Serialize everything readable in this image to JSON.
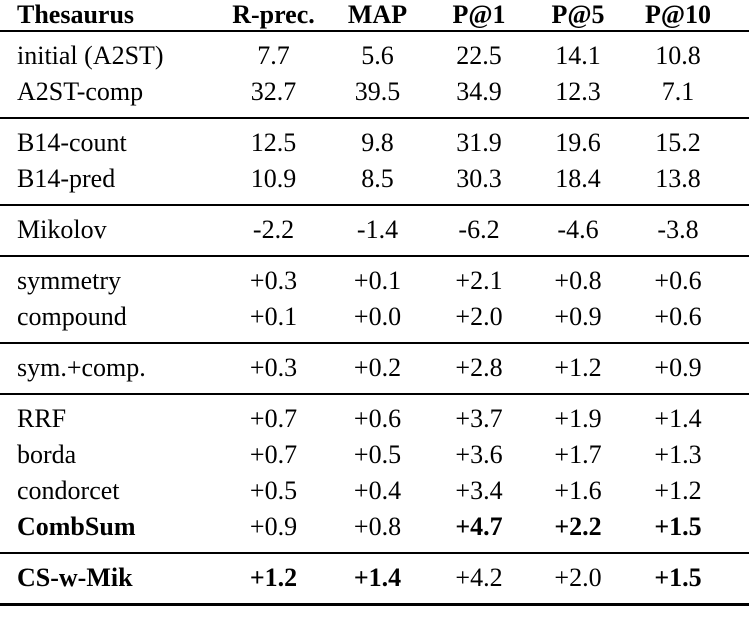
{
  "page": {
    "background_color": "#ffffff",
    "text_color": "#000000"
  },
  "table": {
    "columns": [
      {
        "label": "Thesaurus"
      },
      {
        "label": "R-prec."
      },
      {
        "label": "MAP"
      },
      {
        "label": "P@1"
      },
      {
        "label": "P@5"
      },
      {
        "label": "P@10"
      }
    ],
    "groups": [
      {
        "rows": [
          {
            "label": {
              "text": "initial (A2ST)",
              "bold": false
            },
            "cells": [
              {
                "text": "7.7",
                "bold": false
              },
              {
                "text": "5.6",
                "bold": false
              },
              {
                "text": "22.5",
                "bold": false
              },
              {
                "text": "14.1",
                "bold": false
              },
              {
                "text": "10.8",
                "bold": false
              }
            ]
          },
          {
            "label": {
              "text": "A2ST-comp",
              "bold": false
            },
            "cells": [
              {
                "text": "32.7",
                "bold": false
              },
              {
                "text": "39.5",
                "bold": false
              },
              {
                "text": "34.9",
                "bold": false
              },
              {
                "text": "12.3",
                "bold": false
              },
              {
                "text": "7.1",
                "bold": false
              }
            ]
          }
        ]
      },
      {
        "rows": [
          {
            "label": {
              "text": "B14-count",
              "bold": false
            },
            "cells": [
              {
                "text": "12.5",
                "bold": false
              },
              {
                "text": "9.8",
                "bold": false
              },
              {
                "text": "31.9",
                "bold": false
              },
              {
                "text": "19.6",
                "bold": false
              },
              {
                "text": "15.2",
                "bold": false
              }
            ]
          },
          {
            "label": {
              "text": "B14-pred",
              "bold": false
            },
            "cells": [
              {
                "text": "10.9",
                "bold": false
              },
              {
                "text": "8.5",
                "bold": false
              },
              {
                "text": "30.3",
                "bold": false
              },
              {
                "text": "18.4",
                "bold": false
              },
              {
                "text": "13.8",
                "bold": false
              }
            ]
          }
        ]
      },
      {
        "rows": [
          {
            "label": {
              "text": "Mikolov",
              "bold": false
            },
            "cells": [
              {
                "text": "-2.2",
                "bold": false
              },
              {
                "text": "-1.4",
                "bold": false
              },
              {
                "text": "-6.2",
                "bold": false
              },
              {
                "text": "-4.6",
                "bold": false
              },
              {
                "text": "-3.8",
                "bold": false
              }
            ]
          }
        ]
      },
      {
        "rows": [
          {
            "label": {
              "text": "symmetry",
              "bold": false
            },
            "cells": [
              {
                "text": "+0.3",
                "bold": false
              },
              {
                "text": "+0.1",
                "bold": false
              },
              {
                "text": "+2.1",
                "bold": false
              },
              {
                "text": "+0.8",
                "bold": false
              },
              {
                "text": "+0.6",
                "bold": false
              }
            ]
          },
          {
            "label": {
              "text": "compound",
              "bold": false
            },
            "cells": [
              {
                "text": "+0.1",
                "bold": false
              },
              {
                "text": "+0.0",
                "bold": false
              },
              {
                "text": "+2.0",
                "bold": false
              },
              {
                "text": "+0.9",
                "bold": false
              },
              {
                "text": "+0.6",
                "bold": false
              }
            ]
          }
        ]
      },
      {
        "rows": [
          {
            "label": {
              "text": "sym.+comp.",
              "bold": false
            },
            "cells": [
              {
                "text": "+0.3",
                "bold": false
              },
              {
                "text": "+0.2",
                "bold": false
              },
              {
                "text": "+2.8",
                "bold": false
              },
              {
                "text": "+1.2",
                "bold": false
              },
              {
                "text": "+0.9",
                "bold": false
              }
            ]
          }
        ]
      },
      {
        "rows": [
          {
            "label": {
              "text": "RRF",
              "bold": false
            },
            "cells": [
              {
                "text": "+0.7",
                "bold": false
              },
              {
                "text": "+0.6",
                "bold": false
              },
              {
                "text": "+3.7",
                "bold": false
              },
              {
                "text": "+1.9",
                "bold": false
              },
              {
                "text": "+1.4",
                "bold": false
              }
            ]
          },
          {
            "label": {
              "text": "borda",
              "bold": false
            },
            "cells": [
              {
                "text": "+0.7",
                "bold": false
              },
              {
                "text": "+0.5",
                "bold": false
              },
              {
                "text": "+3.6",
                "bold": false
              },
              {
                "text": "+1.7",
                "bold": false
              },
              {
                "text": "+1.3",
                "bold": false
              }
            ]
          },
          {
            "label": {
              "text": "condorcet",
              "bold": false
            },
            "cells": [
              {
                "text": "+0.5",
                "bold": false
              },
              {
                "text": "+0.4",
                "bold": false
              },
              {
                "text": "+3.4",
                "bold": false
              },
              {
                "text": "+1.6",
                "bold": false
              },
              {
                "text": "+1.2",
                "bold": false
              }
            ]
          },
          {
            "label": {
              "text": "CombSum",
              "bold": true
            },
            "cells": [
              {
                "text": "+0.9",
                "bold": false
              },
              {
                "text": "+0.8",
                "bold": false
              },
              {
                "text": "+4.7",
                "bold": true
              },
              {
                "text": "+2.2",
                "bold": true
              },
              {
                "text": "+1.5",
                "bold": true
              }
            ]
          }
        ]
      },
      {
        "rows": [
          {
            "label": {
              "text": "CS-w-Mik",
              "bold": true
            },
            "cells": [
              {
                "text": "+1.2",
                "bold": true
              },
              {
                "text": "+1.4",
                "bold": true
              },
              {
                "text": "+4.2",
                "bold": false
              },
              {
                "text": "+2.0",
                "bold": false
              },
              {
                "text": "+1.5",
                "bold": true
              }
            ]
          }
        ]
      }
    ]
  }
}
